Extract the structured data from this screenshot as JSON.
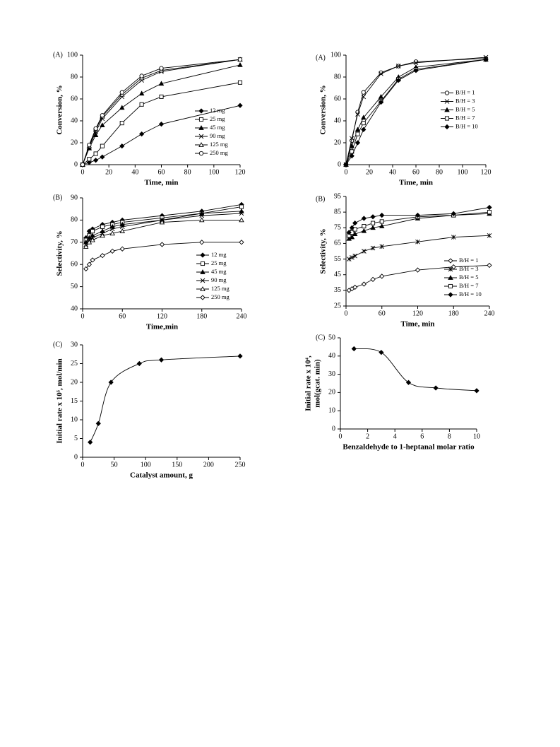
{
  "chart_data": [
    {
      "type": "line",
      "panel_label": "(A)",
      "xlabel": "Time, min",
      "ylabel": [
        "Conversion, %"
      ],
      "x": [
        0,
        5,
        10,
        15,
        30,
        45,
        60,
        120
      ],
      "xlim": [
        0,
        120
      ],
      "xticks": [
        0,
        20,
        40,
        60,
        80,
        100,
        120
      ],
      "ylim": [
        0,
        100
      ],
      "yticks": [
        0,
        20,
        40,
        60,
        80,
        100
      ],
      "legend": "lower right",
      "series": [
        {
          "name": "12 mg",
          "color": "#000000",
          "marker": "diamond-filled",
          "values": [
            0,
            2,
            4,
            7,
            17,
            28,
            37,
            54
          ]
        },
        {
          "name": "25 mg",
          "color": "#000000",
          "marker": "square-open",
          "values": [
            0,
            5,
            10,
            17,
            38,
            55,
            62,
            75
          ]
        },
        {
          "name": "45 mg",
          "color": "#000000",
          "marker": "triangle-filled",
          "values": [
            0,
            15,
            27,
            36,
            52,
            65,
            74,
            91
          ]
        },
        {
          "name": "90 mg",
          "color": "#000000",
          "marker": "x",
          "values": [
            0,
            16,
            30,
            42,
            62,
            77,
            85,
            96
          ]
        },
        {
          "name": "125 mg",
          "color": "#000000",
          "marker": "triangle-open",
          "values": [
            0,
            17,
            32,
            44,
            64,
            79,
            86,
            96
          ]
        },
        {
          "name": "250 mg",
          "color": "#000000",
          "marker": "circle-open",
          "values": [
            0,
            18,
            33,
            45,
            66,
            81,
            88,
            96
          ]
        }
      ]
    },
    {
      "type": "line",
      "panel_label": "(A)",
      "xlabel": "Time, min",
      "ylabel": [
        "Conversion, %"
      ],
      "x": [
        0,
        5,
        10,
        15,
        30,
        45,
        60,
        120
      ],
      "xlim": [
        0,
        120
      ],
      "xticks": [
        0,
        20,
        40,
        60,
        80,
        100,
        120
      ],
      "ylim": [
        0,
        100
      ],
      "yticks": [
        0,
        20,
        40,
        60,
        80,
        100
      ],
      "legend": "center right",
      "series": [
        {
          "name": "B/H = 1",
          "color": "#000000",
          "marker": "circle-open",
          "values": [
            0,
            22,
            48,
            66,
            84,
            90,
            94,
            97
          ]
        },
        {
          "name": "B/H = 3",
          "color": "#000000",
          "marker": "x",
          "values": [
            0,
            24,
            46,
            62,
            83,
            90,
            93,
            98
          ]
        },
        {
          "name": "B/H = 5",
          "color": "#000000",
          "marker": "triangle-filled",
          "values": [
            0,
            17,
            32,
            43,
            62,
            80,
            89,
            96
          ]
        },
        {
          "name": "B/H = 7",
          "color": "#000000",
          "marker": "square-open",
          "values": [
            0,
            12,
            28,
            38,
            58,
            78,
            87,
            96
          ]
        },
        {
          "name": "B/H = 10",
          "color": "#000000",
          "marker": "diamond-filled",
          "values": [
            0,
            8,
            20,
            32,
            57,
            77,
            86,
            96
          ]
        }
      ]
    },
    {
      "type": "line",
      "panel_label": "(B)",
      "xlabel": "Time,min",
      "ylabel": [
        "Selectivity, %"
      ],
      "x": [
        5,
        10,
        15,
        30,
        45,
        60,
        120,
        180,
        240
      ],
      "xlim": [
        0,
        240
      ],
      "xticks": [
        0,
        60,
        120,
        180,
        240
      ],
      "ylim": [
        40,
        90
      ],
      "yticks": [
        40,
        50,
        60,
        70,
        80,
        90
      ],
      "legend": "lower right",
      "series": [
        {
          "name": "12 mg",
          "color": "#000000",
          "marker": "diamond-filled",
          "values": [
            72,
            75,
            76,
            78,
            79,
            80,
            82,
            84,
            87
          ]
        },
        {
          "name": "25 mg",
          "color": "#000000",
          "marker": "square-open",
          "values": [
            71,
            73,
            75,
            77,
            78,
            79,
            81,
            83,
            86
          ]
        },
        {
          "name": "45 mg",
          "color": "#000000",
          "marker": "triangle-filled",
          "values": [
            70,
            72,
            73,
            75,
            77,
            78,
            80,
            83,
            84
          ]
        },
        {
          "name": "90 mg",
          "color": "#000000",
          "marker": "x",
          "values": [
            69,
            71,
            72,
            74,
            76,
            77,
            80,
            82,
            83
          ]
        },
        {
          "name": "125 mg",
          "color": "#000000",
          "marker": "triangle-open",
          "values": [
            68,
            70,
            71,
            73,
            74,
            75,
            79,
            80,
            80
          ]
        },
        {
          "name": "250 mg",
          "color": "#000000",
          "marker": "diamond-open",
          "values": [
            58,
            60,
            62,
            64,
            66,
            67,
            69,
            70,
            70
          ]
        }
      ]
    },
    {
      "type": "line",
      "panel_label": "(B)",
      "xlabel": "Time, min",
      "ylabel": [
        "Selectivity, %"
      ],
      "x": [
        5,
        10,
        15,
        30,
        45,
        60,
        120,
        180,
        240
      ],
      "xlim": [
        0,
        240
      ],
      "xticks": [
        0,
        60,
        120,
        180,
        240
      ],
      "ylim": [
        25,
        95
      ],
      "yticks": [
        25,
        35,
        45,
        55,
        65,
        75,
        85,
        95
      ],
      "legend": "lower right",
      "series": [
        {
          "name": "B/H = 1",
          "color": "#000000",
          "marker": "diamond-open",
          "values": [
            35,
            36,
            37,
            39,
            42,
            44,
            48,
            50,
            51
          ]
        },
        {
          "name": "B/H = 3",
          "color": "#000000",
          "marker": "asterisk",
          "values": [
            55,
            56,
            57,
            60,
            62,
            63,
            66,
            69,
            70
          ]
        },
        {
          "name": "B/H = 5",
          "color": "#000000",
          "marker": "triangle-filled",
          "values": [
            68,
            69,
            71,
            73,
            75,
            76,
            81,
            83,
            84
          ]
        },
        {
          "name": "B/H = 7",
          "color": "#000000",
          "marker": "square-open",
          "values": [
            70,
            72,
            74,
            76,
            78,
            79,
            82,
            83,
            85
          ]
        },
        {
          "name": "B/H = 10",
          "color": "#000000",
          "marker": "diamond-filled",
          "values": [
            72,
            75,
            78,
            81,
            82,
            83,
            83,
            84,
            88
          ]
        }
      ]
    },
    {
      "type": "line",
      "panel_label": "(C)",
      "xlabel": "Catalyst amount, g",
      "ylabel": [
        "Initial rate x 10⁵, mol/min"
      ],
      "x": [
        12,
        25,
        45,
        90,
        125,
        250
      ],
      "xlim": [
        0,
        250
      ],
      "xticks": [
        0,
        50,
        100,
        150,
        200,
        250
      ],
      "ylim": [
        0,
        30
      ],
      "yticks": [
        0,
        5,
        10,
        15,
        20,
        25,
        30
      ],
      "smooth": true,
      "series": [
        {
          "color": "#000000",
          "marker": "diamond-filled",
          "values": [
            4,
            9,
            20,
            25,
            26,
            27
          ]
        }
      ]
    },
    {
      "type": "line",
      "panel_label": "(C)",
      "xlabel": "Benzaldehyde to 1-heptanal molar ratio",
      "ylabel": [
        "Initial rate x 10⁴,",
        "mol(gcat. min)"
      ],
      "x": [
        1,
        3,
        5,
        7,
        10
      ],
      "xlim": [
        0,
        10
      ],
      "xticks": [
        0,
        2,
        4,
        6,
        8,
        10
      ],
      "ylim": [
        0,
        50
      ],
      "yticks": [
        0,
        10,
        20,
        30,
        40,
        50
      ],
      "smooth": true,
      "series": [
        {
          "color": "#000000",
          "marker": "diamond-filled",
          "values": [
            44,
            42,
            25.5,
            22.5,
            21
          ]
        }
      ]
    }
  ]
}
